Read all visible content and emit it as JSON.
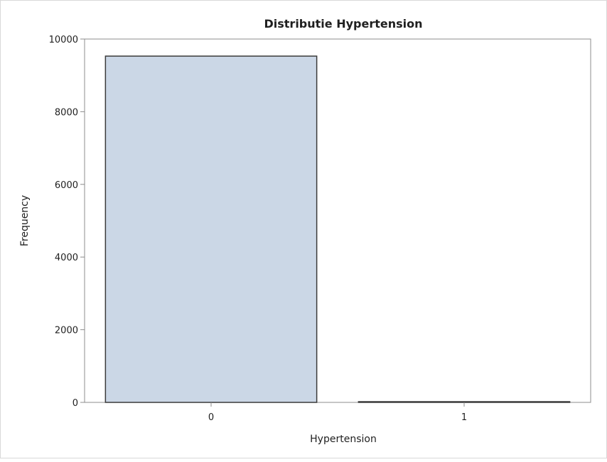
{
  "chart_data": {
    "type": "bar",
    "title": "Distributie Hypertension",
    "xlabel": "Hypertension",
    "ylabel": "Frequency",
    "categories": [
      "0",
      "1"
    ],
    "values": [
      9530,
      20
    ],
    "ylim": [
      0,
      10000
    ],
    "yticks": [
      0,
      2000,
      4000,
      6000,
      8000,
      10000
    ],
    "grid": false,
    "legend": "none",
    "colors": {
      "bar_fill": "#cbd7e6",
      "bar_stroke": "#3a3a3a",
      "axis": "#8c8c8c",
      "text": "#1f1f1f"
    }
  }
}
